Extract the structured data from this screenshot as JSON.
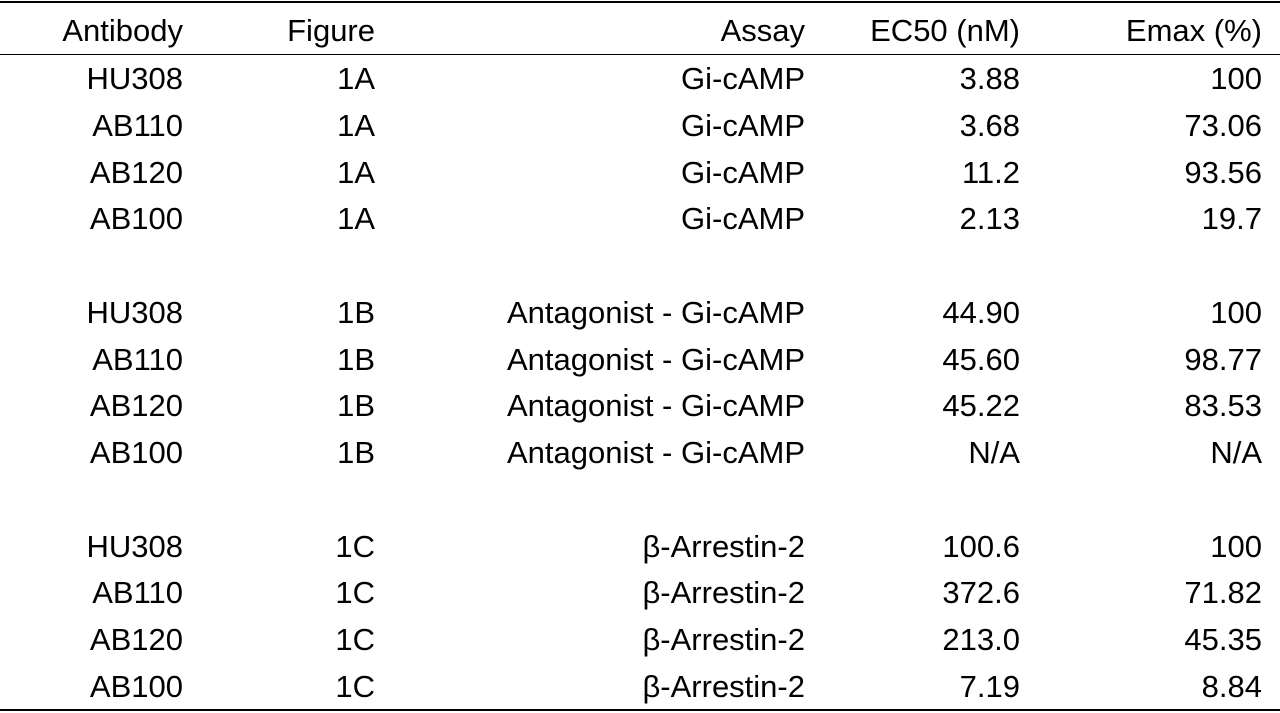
{
  "table": {
    "columns": [
      "Antibody",
      "Figure",
      "Assay",
      "EC50 (nM)",
      "Emax (%)"
    ],
    "groups": [
      [
        [
          "HU308",
          "1A",
          "Gi-cAMP",
          "3.88",
          "100"
        ],
        [
          "AB110",
          "1A",
          "Gi-cAMP",
          "3.68",
          "73.06"
        ],
        [
          "AB120",
          "1A",
          "Gi-cAMP",
          "11.2",
          "93.56"
        ],
        [
          "AB100",
          "1A",
          "Gi-cAMP",
          "2.13",
          "19.7"
        ]
      ],
      [
        [
          "HU308",
          "1B",
          "Antagonist - Gi-cAMP",
          "44.90",
          "100"
        ],
        [
          "AB110",
          "1B",
          "Antagonist - Gi-cAMP",
          "45.60",
          "98.77"
        ],
        [
          "AB120",
          "1B",
          "Antagonist - Gi-cAMP",
          "45.22",
          "83.53"
        ],
        [
          "AB100",
          "1B",
          "Antagonist - Gi-cAMP",
          "N/A",
          "N/A"
        ]
      ],
      [
        [
          "HU308",
          "1C",
          "β-Arrestin-2",
          "100.6",
          "100"
        ],
        [
          "AB110",
          "1C",
          "β-Arrestin-2",
          "372.6",
          "71.82"
        ],
        [
          "AB120",
          "1C",
          "β-Arrestin-2",
          "213.0",
          "45.35"
        ],
        [
          "AB100",
          "1C",
          "β-Arrestin-2",
          "7.19",
          "8.84"
        ]
      ]
    ]
  }
}
